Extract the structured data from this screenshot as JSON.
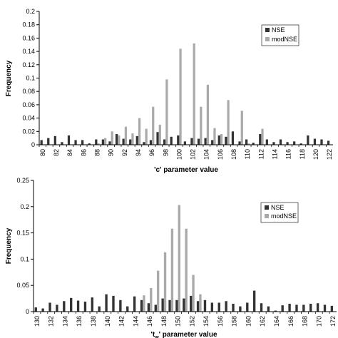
{
  "chart_data": [
    {
      "type": "bar",
      "xlabel": "'c' parameter value",
      "ylabel": "Frequency",
      "ylim": [
        0,
        0.2
      ],
      "yticks": [
        "0",
        "0.02",
        "0.04",
        "0.06",
        "0.08",
        "0.1",
        "0.12",
        "0.14",
        "0.16",
        "0.18",
        "0.2"
      ],
      "xtick_labels": [
        "80",
        "82",
        "84",
        "86",
        "88",
        "90",
        "92",
        "94",
        "96",
        "98",
        "100",
        "102",
        "104",
        "106",
        "108",
        "110",
        "112",
        "114",
        "116",
        "118",
        "120",
        "122"
      ],
      "legend_position": "top-right",
      "categories": [
        80,
        81,
        82,
        83,
        84,
        85,
        86,
        87,
        88,
        89,
        90,
        91,
        92,
        93,
        94,
        95,
        96,
        97,
        98,
        99,
        100,
        101,
        102,
        103,
        104,
        105,
        106,
        107,
        108,
        109,
        110,
        111,
        112,
        113,
        114,
        115,
        116,
        117,
        118,
        119,
        120,
        121,
        122
      ],
      "series": [
        {
          "name": "NSE",
          "color": "#333333",
          "values": [
            0.007,
            0.01,
            0.013,
            0.004,
            0.014,
            0.007,
            0.007,
            0.002,
            0.008,
            0.008,
            0.005,
            0.016,
            0.009,
            0.008,
            0.013,
            0.004,
            0.007,
            0.019,
            0.008,
            0.012,
            0.014,
            0.005,
            0.01,
            0.009,
            0.01,
            0.007,
            0.014,
            0.012,
            0.02,
            0.005,
            0.008,
            0.003,
            0.016,
            0.008,
            0.004,
            0.008,
            0.004,
            0.005,
            0.002,
            0.014,
            0.009,
            0.008,
            0.006
          ]
        },
        {
          "name": "modNSE",
          "color": "#aaaaaa",
          "values": [
            0,
            0,
            0,
            0,
            0,
            0,
            0,
            0,
            0.002,
            0.01,
            0.02,
            0.014,
            0.027,
            0.017,
            0.04,
            0.024,
            0.057,
            0.03,
            0.098,
            0,
            0.144,
            0,
            0.152,
            0.057,
            0.09,
            0.025,
            0.016,
            0.067,
            0,
            0.051,
            0.002,
            0,
            0.024,
            0,
            0,
            0,
            0,
            0,
            0,
            0,
            0,
            0,
            0
          ]
        }
      ]
    },
    {
      "type": "bar",
      "xlabel_main": "'t",
      "xlabel_sub": "w",
      "xlabel_rest": "' parameter value",
      "ylabel": "Frequency",
      "ylim": [
        0,
        0.25
      ],
      "yticks": [
        "0",
        "0.05",
        "0.1",
        "0.15",
        "0.2",
        "0.25"
      ],
      "xtick_labels": [
        "130",
        "132",
        "134",
        "136",
        "138",
        "140",
        "142",
        "144",
        "146",
        "148",
        "150",
        "152",
        "154",
        "156",
        "158",
        "160",
        "162",
        "164",
        "166",
        "168",
        "170",
        "172"
      ],
      "legend_position": "top-right",
      "categories": [
        130,
        131,
        132,
        133,
        134,
        135,
        136,
        137,
        138,
        139,
        140,
        141,
        142,
        143,
        144,
        145,
        146,
        147,
        148,
        149,
        150,
        151,
        152,
        153,
        154,
        155,
        156,
        157,
        158,
        159,
        160,
        161,
        162,
        163,
        164,
        165,
        166,
        167,
        168,
        169,
        170,
        171,
        172
      ],
      "series": [
        {
          "name": "NSE",
          "color": "#333333",
          "values": [
            0.008,
            0.006,
            0.017,
            0.013,
            0.02,
            0.026,
            0.021,
            0.019,
            0.027,
            0.01,
            0.033,
            0.03,
            0.022,
            0.01,
            0.029,
            0.022,
            0.016,
            0.013,
            0.025,
            0.022,
            0.022,
            0.025,
            0.03,
            0.02,
            0.022,
            0.017,
            0.017,
            0.02,
            0.015,
            0.01,
            0.017,
            0.04,
            0.016,
            0.01,
            0.002,
            0.012,
            0.015,
            0.013,
            0.013,
            0.015,
            0.016,
            0.013,
            0.011
          ]
        },
        {
          "name": "modNSE",
          "color": "#aaaaaa",
          "values": [
            0,
            0,
            0,
            0,
            0,
            0,
            0,
            0,
            0,
            0,
            0,
            0,
            0,
            0,
            0,
            0.031,
            0.045,
            0.078,
            0.113,
            0.158,
            0.203,
            0.158,
            0.07,
            0.033,
            0,
            0,
            0,
            0,
            0,
            0,
            0,
            0,
            0,
            0,
            0,
            0,
            0,
            0,
            0,
            0,
            0,
            0,
            0
          ]
        }
      ]
    }
  ]
}
